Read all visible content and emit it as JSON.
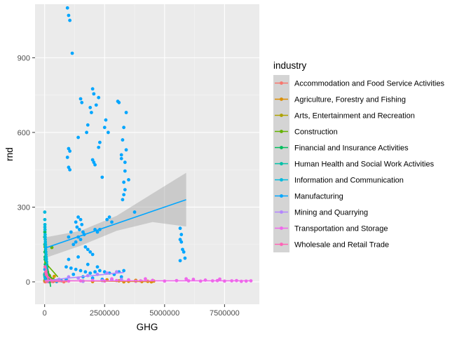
{
  "chart_data": {
    "type": "scatter",
    "xlabel": "GHG",
    "ylabel": "rnd",
    "xlim": [
      -400000,
      8950000
    ],
    "ylim": [
      -90,
      1115
    ],
    "x_ticks": [
      0,
      2500000,
      5000000,
      7500000
    ],
    "x_tick_labels": [
      "0",
      "2500000",
      "5000000",
      "7500000"
    ],
    "y_ticks": [
      0,
      300,
      600,
      900
    ],
    "y_tick_labels": [
      "0",
      "300",
      "600",
      "900"
    ],
    "grid": true,
    "legend": {
      "title": "industry",
      "position": "right"
    },
    "series": [
      {
        "name": "Accommodation and Food Service Activities",
        "color": "#F8766D",
        "points": [
          [
            5000,
            1
          ],
          [
            15000,
            2
          ],
          [
            30000,
            0
          ],
          [
            60000,
            3
          ],
          [
            90000,
            1
          ],
          [
            120000,
            2
          ],
          [
            200000,
            0
          ],
          [
            350000,
            1
          ],
          [
            500000,
            2
          ],
          [
            800000,
            0
          ]
        ],
        "trend": [
          [
            0,
            1
          ],
          [
            900000,
            1
          ]
        ]
      },
      {
        "name": "Agriculture, Forestry and Fishing",
        "color": "#DB8E00",
        "points": [
          [
            400000,
            22
          ],
          [
            900000,
            5
          ],
          [
            1600000,
            3
          ],
          [
            2600000,
            8
          ],
          [
            3100000,
            4
          ],
          [
            3500000,
            2
          ],
          [
            3800000,
            6
          ],
          [
            4050000,
            1
          ],
          [
            4300000,
            2
          ],
          [
            4450000,
            0
          ],
          [
            4550000,
            3
          ],
          [
            2000000,
            1
          ],
          [
            3300000,
            0
          ]
        ],
        "trend": [
          [
            0,
            5
          ],
          [
            4600000,
            1
          ]
        ]
      },
      {
        "name": "Arts, Entertainment and Recreation",
        "color": "#AEA200",
        "points": [
          [
            10000,
            6
          ],
          [
            30000,
            4
          ],
          [
            60000,
            9
          ],
          [
            100000,
            3
          ],
          [
            150000,
            5
          ],
          [
            250000,
            2
          ],
          [
            400000,
            4
          ]
        ],
        "trend": [
          [
            0,
            6
          ],
          [
            450000,
            3
          ]
        ]
      },
      {
        "name": "Construction",
        "color": "#64B200",
        "points": [
          [
            20000,
            140
          ],
          [
            50000,
            80
          ],
          [
            80000,
            60
          ],
          [
            120000,
            40
          ],
          [
            150000,
            30
          ],
          [
            200000,
            25
          ],
          [
            250000,
            15
          ],
          [
            300000,
            138
          ],
          [
            350000,
            10
          ],
          [
            500000,
            5
          ],
          [
            60000,
            100
          ],
          [
            30000,
            120
          ]
        ],
        "trend": [
          [
            0,
            80
          ],
          [
            550000,
            20
          ]
        ]
      },
      {
        "name": "Financial and Insurance Activities",
        "color": "#00BD5C",
        "points": [
          [
            5000,
            180
          ],
          [
            10000,
            150
          ],
          [
            15000,
            120
          ],
          [
            20000,
            100
          ],
          [
            25000,
            90
          ],
          [
            30000,
            70
          ],
          [
            40000,
            60
          ],
          [
            50000,
            50
          ],
          [
            80000,
            40
          ],
          [
            100000,
            30
          ],
          [
            150000,
            20
          ],
          [
            200000,
            15
          ],
          [
            10000,
            200
          ],
          [
            30000,
            35
          ]
        ],
        "trend": [
          [
            0,
            130
          ],
          [
            250000,
            -20
          ]
        ]
      },
      {
        "name": "Human Health and Social Work Activities",
        "color": "#00C1A7",
        "points": [
          [
            3000,
            30
          ],
          [
            8000,
            25
          ],
          [
            15000,
            20
          ],
          [
            25000,
            15
          ],
          [
            40000,
            10
          ],
          [
            60000,
            8
          ],
          [
            90000,
            12
          ]
        ],
        "trend": [
          [
            0,
            25
          ],
          [
            100000,
            10
          ]
        ]
      },
      {
        "name": "Information and Communication",
        "color": "#00BADE",
        "points": [
          [
            5000,
            280
          ],
          [
            8000,
            250
          ],
          [
            12000,
            230
          ],
          [
            15000,
            210
          ],
          [
            20000,
            190
          ],
          [
            25000,
            170
          ],
          [
            30000,
            160
          ],
          [
            35000,
            150
          ],
          [
            40000,
            130
          ],
          [
            50000,
            120
          ],
          [
            60000,
            100
          ],
          [
            70000,
            90
          ],
          [
            80000,
            80
          ],
          [
            90000,
            70
          ],
          [
            100000,
            60
          ],
          [
            10000,
            220
          ],
          [
            22000,
            180
          ],
          [
            45000,
            140
          ],
          [
            55000,
            110
          ],
          [
            65000,
            95
          ]
        ],
        "trend": [
          [
            0,
            150
          ],
          [
            110000,
            50
          ]
        ]
      },
      {
        "name": "Manufacturing",
        "color": "#00A6FF",
        "points": [
          [
            950000,
            1100
          ],
          [
            1000000,
            1070
          ],
          [
            1050000,
            1050
          ],
          [
            1150000,
            918
          ],
          [
            1500000,
            735
          ],
          [
            1550000,
            720
          ],
          [
            1900000,
            700
          ],
          [
            1950000,
            680
          ],
          [
            1800000,
            630
          ],
          [
            1750000,
            600
          ],
          [
            2000000,
            775
          ],
          [
            2050000,
            755
          ],
          [
            2250000,
            740
          ],
          [
            2150000,
            710
          ],
          [
            2550000,
            650
          ],
          [
            2650000,
            600
          ],
          [
            2500000,
            620
          ],
          [
            3050000,
            725
          ],
          [
            3100000,
            720
          ],
          [
            3400000,
            680
          ],
          [
            3300000,
            620
          ],
          [
            3250000,
            570
          ],
          [
            3400000,
            530
          ],
          [
            3200000,
            510
          ],
          [
            2300000,
            560
          ],
          [
            2050000,
            480
          ],
          [
            2100000,
            470
          ],
          [
            2000000,
            490
          ],
          [
            2400000,
            420
          ],
          [
            2250000,
            540
          ],
          [
            1000000,
            535
          ],
          [
            1050000,
            525
          ],
          [
            950000,
            500
          ],
          [
            1000000,
            460
          ],
          [
            1050000,
            450
          ],
          [
            1400000,
            580
          ],
          [
            3200000,
            495
          ],
          [
            3350000,
            480
          ],
          [
            3350000,
            445
          ],
          [
            3300000,
            400
          ],
          [
            3350000,
            370
          ],
          [
            3300000,
            350
          ],
          [
            3250000,
            330
          ],
          [
            3500000,
            410
          ],
          [
            3750000,
            280
          ],
          [
            1400000,
            260
          ],
          [
            1500000,
            250
          ],
          [
            1300000,
            240
          ],
          [
            1550000,
            230
          ],
          [
            1350000,
            220
          ],
          [
            1450000,
            210
          ],
          [
            1600000,
            200
          ],
          [
            1650000,
            190
          ],
          [
            1400000,
            180
          ],
          [
            1500000,
            170
          ],
          [
            1300000,
            160
          ],
          [
            1200000,
            150
          ],
          [
            1700000,
            140
          ],
          [
            1800000,
            130
          ],
          [
            1900000,
            120
          ],
          [
            2000000,
            110
          ],
          [
            1100000,
            200
          ],
          [
            1000000,
            180
          ],
          [
            2100000,
            210
          ],
          [
            2300000,
            210
          ],
          [
            2200000,
            200
          ],
          [
            2600000,
            250
          ],
          [
            2700000,
            260
          ],
          [
            2800000,
            240
          ],
          [
            900000,
            60
          ],
          [
            1100000,
            55
          ],
          [
            1300000,
            50
          ],
          [
            1500000,
            45
          ],
          [
            1700000,
            40
          ],
          [
            1900000,
            35
          ],
          [
            2100000,
            40
          ],
          [
            2300000,
            45
          ],
          [
            2500000,
            40
          ],
          [
            2700000,
            35
          ],
          [
            2900000,
            30
          ],
          [
            3100000,
            40
          ],
          [
            3300000,
            45
          ],
          [
            1200000,
            30
          ],
          [
            1600000,
            20
          ],
          [
            2000000,
            15
          ],
          [
            2400000,
            10
          ],
          [
            2800000,
            10
          ],
          [
            3200000,
            20
          ],
          [
            900000,
            10
          ],
          [
            1000000,
            90
          ],
          [
            1400000,
            100
          ],
          [
            1800000,
            70
          ],
          [
            2200000,
            60
          ],
          [
            5650000,
            215
          ],
          [
            5700000,
            190
          ],
          [
            5650000,
            170
          ],
          [
            5700000,
            160
          ],
          [
            5750000,
            130
          ],
          [
            5800000,
            120
          ],
          [
            5850000,
            95
          ],
          [
            5650000,
            85
          ],
          [
            10000,
            50
          ],
          [
            30000,
            20
          ],
          [
            50000,
            10
          ],
          [
            80000,
            5
          ],
          [
            150000,
            2
          ],
          [
            300000,
            3
          ],
          [
            500000,
            1
          ],
          [
            700000,
            4
          ]
        ],
        "trend": [
          [
            0,
            135
          ],
          [
            5900000,
            330
          ]
        ],
        "ribbon": [
          [
            0,
            95,
            178
          ],
          [
            1500000,
            145,
            205
          ],
          [
            3000000,
            205,
            265
          ],
          [
            4500000,
            240,
            355
          ],
          [
            5900000,
            222,
            438
          ]
        ]
      },
      {
        "name": "Mining and Quarrying",
        "color": "#B385FF",
        "points": [
          [
            200000,
            5
          ],
          [
            600000,
            10
          ],
          [
            1000000,
            20
          ],
          [
            1400000,
            15
          ],
          [
            1800000,
            25
          ],
          [
            2200000,
            30
          ],
          [
            2600000,
            35
          ],
          [
            3000000,
            40
          ],
          [
            3200000,
            10
          ],
          [
            2400000,
            5
          ],
          [
            1600000,
            2
          ]
        ],
        "trend": [
          [
            0,
            5
          ],
          [
            3300000,
            38
          ]
        ]
      },
      {
        "name": "Transportation and Storage",
        "color": "#EF67EB",
        "points": [
          [
            100000,
            2
          ],
          [
            500000,
            5
          ],
          [
            1000000,
            3
          ],
          [
            1500000,
            4
          ],
          [
            2000000,
            6
          ],
          [
            2500000,
            3
          ],
          [
            3000000,
            5
          ],
          [
            3500000,
            8
          ],
          [
            4000000,
            4
          ],
          [
            4500000,
            6
          ],
          [
            5000000,
            3
          ],
          [
            5500000,
            5
          ],
          [
            5900000,
            12
          ],
          [
            6000000,
            4
          ],
          [
            6500000,
            3
          ],
          [
            6700000,
            7
          ],
          [
            7000000,
            4
          ],
          [
            7200000,
            5
          ],
          [
            7500000,
            3
          ],
          [
            7800000,
            4
          ],
          [
            8000000,
            5
          ],
          [
            8200000,
            2
          ],
          [
            8400000,
            3
          ],
          [
            8600000,
            4
          ],
          [
            6200000,
            10
          ],
          [
            7300000,
            11
          ],
          [
            4200000,
            12
          ],
          [
            3800000,
            2
          ],
          [
            2800000,
            12
          ]
        ],
        "trend": [
          [
            0,
            4
          ],
          [
            8600000,
            4
          ]
        ]
      },
      {
        "name": "Wholesale and Retail Trade",
        "color": "#FF63B6",
        "points": [
          [
            20000,
            60
          ],
          [
            50000,
            40
          ],
          [
            80000,
            30
          ],
          [
            120000,
            20
          ],
          [
            160000,
            10
          ],
          [
            200000,
            5
          ],
          [
            300000,
            3
          ],
          [
            100000,
            50
          ],
          [
            60000,
            25
          ]
        ],
        "trend": [
          [
            0,
            35
          ],
          [
            320000,
            5
          ]
        ]
      }
    ]
  }
}
